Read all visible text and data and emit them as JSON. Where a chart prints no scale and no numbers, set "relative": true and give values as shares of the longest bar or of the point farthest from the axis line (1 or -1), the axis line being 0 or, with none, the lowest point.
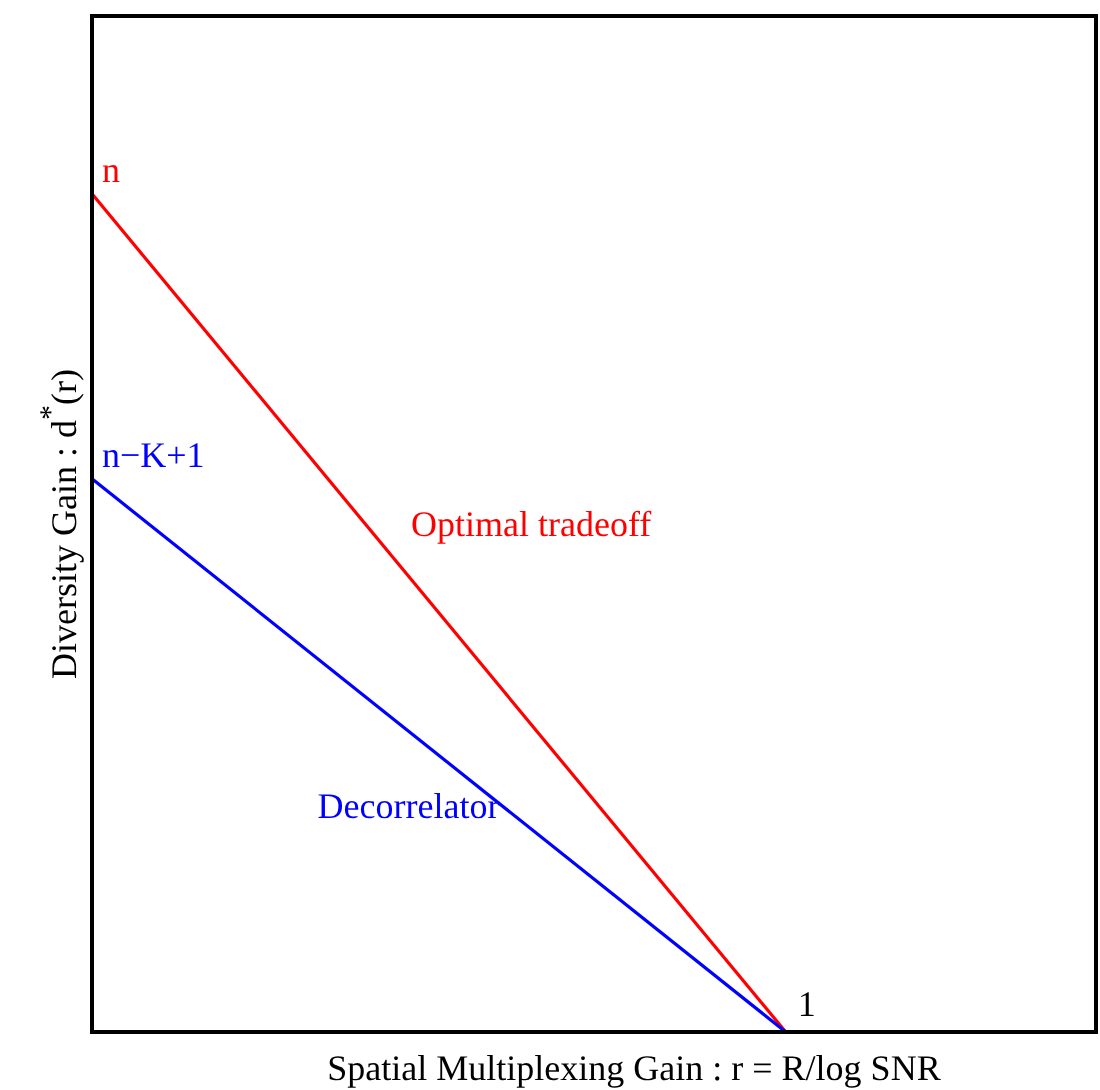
{
  "chart_data": {
    "type": "line",
    "relative": true,
    "xlabel": "Spatial Multiplexing Gain : r = R/log SNR",
    "ylabel": "Diversity Gain : d$^{*}$(r)",
    "categories": [
      null,
      null
    ],
    "series": [
      {
        "name": "Optimal tradeoff",
        "color": "#ff0000",
        "values": [
          1,
          0
        ]
      },
      {
        "name": "Decorrelator",
        "color": "#0000ff",
        "values": [
          0.66,
          0
        ]
      }
    ],
    "annotations": [
      "n",
      "n−K+1",
      "1"
    ],
    "grid": false,
    "legend": false,
    "marker": "none",
    "line_style": "solid"
  }
}
